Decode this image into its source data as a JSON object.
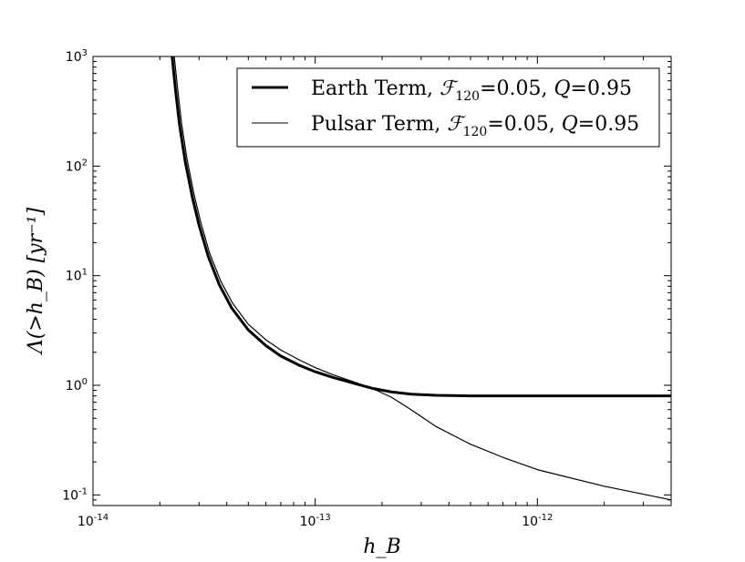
{
  "chart_data": {
    "type": "line",
    "title": "",
    "xlabel": "h_B",
    "ylabel": "Λ(>h_B) [yr⁻¹]",
    "x_scale": "log",
    "y_scale": "log",
    "xlim": [
      1e-14,
      4e-12
    ],
    "ylim": [
      0.08,
      1000
    ],
    "grid": false,
    "legend_position": "top-right",
    "x_ticks": [
      {
        "base": "10",
        "exp": "-14",
        "value": 1e-14
      },
      {
        "base": "10",
        "exp": "-13",
        "value": 1e-13
      },
      {
        "base": "10",
        "exp": "-12",
        "value": 1e-12
      }
    ],
    "y_ticks": [
      {
        "base": "10",
        "exp": "-1",
        "value": 0.1
      },
      {
        "base": "10",
        "exp": "0",
        "value": 1
      },
      {
        "base": "10",
        "exp": "1",
        "value": 10
      },
      {
        "base": "10",
        "exp": "2",
        "value": 100
      },
      {
        "base": "10",
        "exp": "3",
        "value": 1000
      }
    ],
    "series": [
      {
        "name": "Earth Term, F120=0.05, Q=0.95",
        "legend": {
          "prefix": "Earth Term, ",
          "F": "ℱ",
          "sub": "120",
          "fval": "=0.05, ",
          "Q": "Q",
          "qval": "=0.95"
        },
        "style": "thick",
        "color": "#000000",
        "x": [
          2.27e-14,
          2.35e-14,
          2.45e-14,
          2.6e-14,
          2.8e-14,
          3e-14,
          3.3e-14,
          3.7e-14,
          4.2e-14,
          5e-14,
          6e-14,
          7e-14,
          8.5e-14,
          1e-13,
          1.2e-13,
          1.5e-13,
          1.8e-13,
          2.2e-13,
          2.7e-13,
          3.5e-13,
          5e-13,
          7e-13,
          1e-12,
          2e-12,
          4e-12
        ],
        "y": [
          1000,
          500,
          240,
          110,
          52,
          29,
          15,
          8.3,
          5.1,
          3.2,
          2.3,
          1.85,
          1.52,
          1.33,
          1.18,
          1.04,
          0.94,
          0.87,
          0.83,
          0.81,
          0.8,
          0.8,
          0.8,
          0.8,
          0.8
        ]
      },
      {
        "name": "Pulsar Term, F120=0.05, Q=0.95",
        "legend": {
          "prefix": "Pulsar Term, ",
          "F": "ℱ",
          "sub": "120",
          "fval": "=0.05, ",
          "Q": "Q",
          "qval": "=0.95"
        },
        "style": "thin",
        "color": "#000000",
        "x": [
          2.32e-14,
          2.4e-14,
          2.5e-14,
          2.65e-14,
          2.85e-14,
          3.05e-14,
          3.35e-14,
          3.75e-14,
          4.25e-14,
          5e-14,
          6e-14,
          7e-14,
          8.5e-14,
          1e-13,
          1.2e-13,
          1.5e-13,
          1.8e-13,
          2.2e-13,
          2.7e-13,
          3.5e-13,
          5e-13,
          7e-13,
          1e-12,
          2e-12,
          4e-12
        ],
        "y": [
          1000,
          520,
          250,
          115,
          55,
          31,
          16,
          9.0,
          5.6,
          3.6,
          2.6,
          2.1,
          1.7,
          1.45,
          1.25,
          1.07,
          0.94,
          0.78,
          0.6,
          0.42,
          0.29,
          0.22,
          0.17,
          0.12,
          0.09
        ]
      }
    ]
  }
}
